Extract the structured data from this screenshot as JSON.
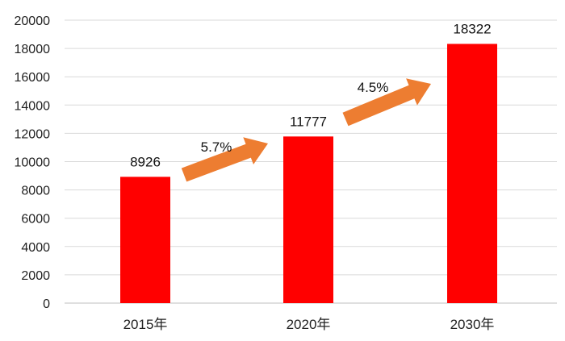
{
  "chart_data": {
    "type": "bar",
    "categories": [
      "2015年",
      "2020年",
      "2030年"
    ],
    "values": [
      8926,
      11777,
      18322
    ],
    "data_labels": [
      "8926",
      "11777",
      "18322"
    ],
    "ylim": [
      0,
      20000
    ],
    "yticks": [
      "0",
      "2000",
      "4000",
      "6000",
      "8000",
      "10000",
      "12000",
      "14000",
      "16000",
      "18000",
      "20000"
    ],
    "grid": true,
    "legend": "none",
    "bar_color": "#ff0000",
    "annotations": [
      {
        "text": "5.7%",
        "from_category": "2015年",
        "to_category": "2020年",
        "type": "growth-arrow"
      },
      {
        "text": "4.5%",
        "from_category": "2020年",
        "to_category": "2030年",
        "type": "growth-arrow"
      }
    ],
    "arrow_color": "#ed7d31"
  }
}
